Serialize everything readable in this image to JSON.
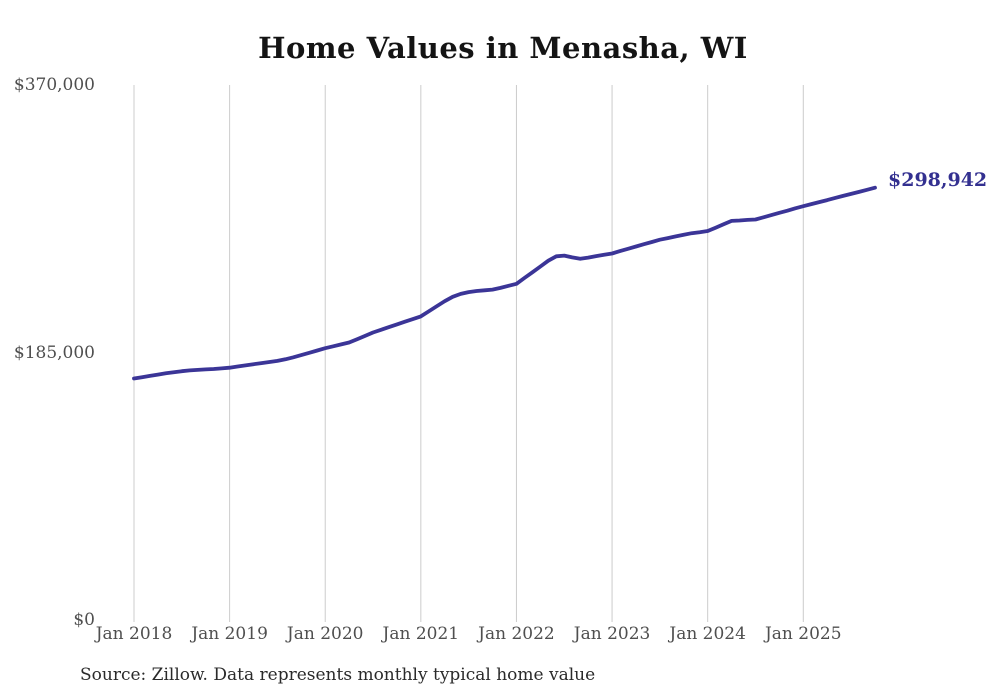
{
  "colors": {
    "line": "#3b3597",
    "end_label": "#333090",
    "gridline": "#cccccc",
    "title_text": "#141414",
    "tick_text": "#4f4f4f",
    "source_text": "#2a2a2a"
  },
  "chart_data": {
    "type": "line",
    "title": "Home Values in Menasha, WI",
    "source": "Source: Zillow. Data represents monthly typical home value",
    "xlabel": "",
    "ylabel": "",
    "frequency": "monthly",
    "x_start": "Jan 2018",
    "x_end": "Oct 2025",
    "ylim": [
      0,
      370000
    ],
    "grid": "vertical-only",
    "legend": "none",
    "y_ticks": [
      {
        "label": "$370,000",
        "value": 370000
      },
      {
        "label": "$185,000",
        "value": 185000
      },
      {
        "label": "$0",
        "value": 0
      }
    ],
    "x_tick_labels": [
      "Jan 2018",
      "Jan 2019",
      "Jan 2020",
      "Jan 2021",
      "Jan 2022",
      "Jan 2023",
      "Jan 2024",
      "Jan 2025"
    ],
    "x_tick_month_interval": 12,
    "end_label": "$298,942",
    "latest_value": 298942,
    "series": [
      {
        "name": "Typical home value ($)",
        "values": [
          167000,
          167900,
          168800,
          169700,
          170600,
          171400,
          172100,
          172600,
          173000,
          173300,
          173600,
          174000,
          174500,
          175300,
          176100,
          176900,
          177700,
          178400,
          179200,
          180300,
          181700,
          183200,
          184800,
          186400,
          188000,
          189300,
          190600,
          191900,
          194200,
          196500,
          198800,
          200700,
          202600,
          204400,
          206300,
          208100,
          210000,
          213500,
          217000,
          220500,
          223500,
          225500,
          226800,
          227500,
          228000,
          228500,
          229700,
          231100,
          232500,
          236500,
          240500,
          244500,
          248500,
          251500,
          252000,
          250800,
          249800,
          250600,
          251700,
          252600,
          253500,
          255100,
          256700,
          258300,
          259900,
          261400,
          263000,
          264100,
          265300,
          266400,
          267500,
          268200,
          269000,
          271300,
          273700,
          276000,
          276300,
          276700,
          277000,
          278500,
          280000,
          281600,
          283100,
          284700,
          286200,
          287600,
          289000,
          290400,
          291900,
          293300,
          294700,
          296100,
          297500,
          298942
        ]
      }
    ]
  }
}
